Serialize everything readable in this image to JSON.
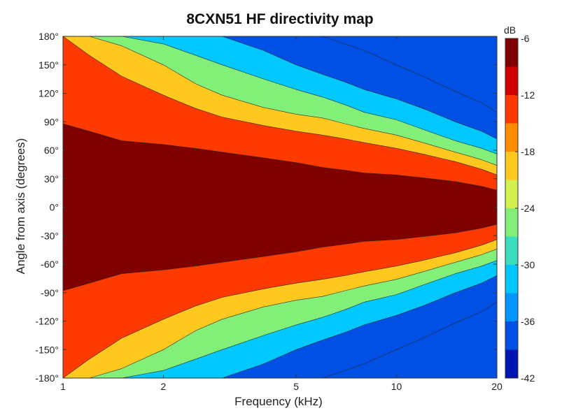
{
  "chart_data": {
    "type": "heatmap",
    "title": "8CXN51 HF directivity map",
    "xlabel": "Frequency (kHz)",
    "ylabel": "Angle from axis (degrees)",
    "x_scale": "log",
    "xlim": [
      1,
      20
    ],
    "ylim": [
      -180,
      180
    ],
    "x_ticks": [
      1,
      2,
      5,
      10,
      20
    ],
    "x_tick_labels": [
      "1",
      "2",
      "5",
      "10",
      "20"
    ],
    "y_ticks": [
      180,
      150,
      120,
      90,
      60,
      30,
      0,
      -30,
      -60,
      -90,
      -120,
      -150,
      -180
    ],
    "y_tick_labels": [
      "180°",
      "150°",
      "120°",
      "90°",
      "60°",
      "30°",
      "0°",
      "-30°",
      "-60°",
      "-90°",
      "-120°",
      "-150°",
      "-180°"
    ],
    "grid": false,
    "colorbar": {
      "label": "dB",
      "range": [
        -42,
        -6
      ],
      "ticks": [
        -6,
        -12,
        -18,
        -24,
        -30,
        -36,
        -42
      ],
      "tick_labels": [
        "-6",
        "-12",
        "-18",
        "-24",
        "-30",
        "-36",
        "-42"
      ],
      "levels": [
        -6,
        -9,
        -12,
        -15,
        -18,
        -21,
        -24,
        -27,
        -30,
        -33,
        -36,
        -39,
        -42
      ],
      "colors": [
        "#7f0000",
        "#d10000",
        "#ff3a00",
        "#ff8c00",
        "#ffc81e",
        "#d2f050",
        "#82f078",
        "#3cdcbe",
        "#00c8ff",
        "#0096ff",
        "#0050e6",
        "#0014b4",
        "#000078"
      ]
    },
    "symmetric_about_zero": true,
    "level_contours_deg": {
      "frequency_khz": [
        1,
        1.2,
        1.5,
        2,
        2.5,
        3,
        4,
        5,
        6,
        7,
        8,
        10,
        12,
        15,
        18,
        20
      ],
      "-6dB": [
        88,
        80,
        70,
        66,
        62,
        58,
        52,
        47,
        42,
        39,
        36,
        34,
        31,
        27,
        22,
        18
      ],
      "-12dB": [
        180,
        160,
        138,
        118,
        104,
        95,
        86,
        80,
        76,
        72,
        68,
        62,
        56,
        48,
        40,
        34
      ],
      "-18dB": [
        180,
        180,
        170,
        150,
        130,
        118,
        105,
        98,
        94,
        88,
        83,
        76,
        68,
        58,
        50,
        44
      ],
      "-24dB": [
        180,
        180,
        180,
        172,
        160,
        150,
        135,
        124,
        116,
        108,
        100,
        92,
        82,
        70,
        62,
        56
      ],
      "-30dB": [
        180,
        180,
        180,
        180,
        180,
        180,
        165,
        150,
        140,
        132,
        124,
        114,
        104,
        90,
        80,
        72
      ],
      "-36dB": [
        180,
        180,
        180,
        180,
        180,
        180,
        180,
        180,
        180,
        172,
        165,
        150,
        138,
        122,
        110,
        100
      ]
    }
  }
}
